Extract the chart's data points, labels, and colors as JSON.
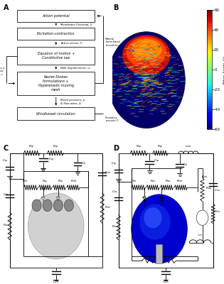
{
  "bg": "#ffffff",
  "panel_labels": [
    "A",
    "B",
    "C",
    "D"
  ],
  "flowchart_boxes": [
    "Action potential",
    "Excitation-contraction",
    "Equation of motion +\nConstitutive law",
    "Navier-Stokes\nformulations +\nHyperelastic moving\nmesh",
    "Windkessel circulation"
  ],
  "arrow_labels": [
    "Membrane Potential, V",
    "Active stress, Tₐ",
    "Wall displacement, űₛ",
    "Blood pressure, p\n& flow rates, Q"
  ],
  "colorbar_ticks": [
    60,
    40,
    20,
    0,
    -20,
    -40,
    -60
  ],
  "colorbar_label": "Fibre Angle (°)"
}
